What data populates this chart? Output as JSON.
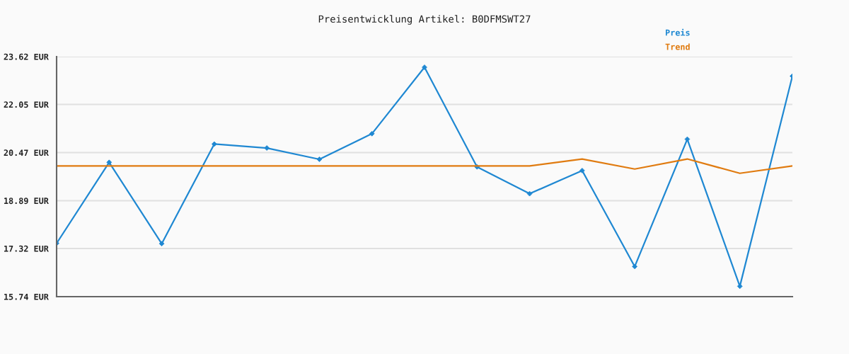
{
  "chart_data": {
    "type": "line",
    "title": "Preisentwicklung Artikel: B0DFMSWT27",
    "categories": [
      null,
      null,
      null,
      null,
      null,
      null,
      null,
      null,
      null,
      null,
      null,
      null,
      null,
      null,
      null
    ],
    "series": [
      {
        "name": "Preis",
        "color": "#1f88d2",
        "values": [
          17.49,
          20.15,
          17.48,
          20.75,
          20.62,
          20.25,
          21.09,
          23.27,
          20.0,
          19.12,
          19.88,
          16.73,
          20.91,
          16.08,
          22.98
        ]
      },
      {
        "name": "Trend",
        "color": "#e07b10",
        "marker": "none",
        "values": [
          20.03,
          20.03,
          20.03,
          20.03,
          20.03,
          20.03,
          20.03,
          20.03,
          20.03,
          20.03,
          20.26,
          19.93,
          20.26,
          19.79,
          20.03
        ]
      }
    ],
    "ylim": [
      15.74,
      23.62
    ],
    "yticks": [
      {
        "value": 15.74,
        "label": "15.74 EUR"
      },
      {
        "value": 17.32,
        "label": "17.32 EUR"
      },
      {
        "value": 18.89,
        "label": "18.89 EUR"
      },
      {
        "value": 20.47,
        "label": "20.47 EUR"
      },
      {
        "value": 22.05,
        "label": "22.05 EUR"
      },
      {
        "value": 23.62,
        "label": "23.62 EUR"
      }
    ],
    "grid": "y",
    "legend": "top right",
    "tick_labels": "y",
    "marker": "diamond",
    "line_style": "solid"
  }
}
